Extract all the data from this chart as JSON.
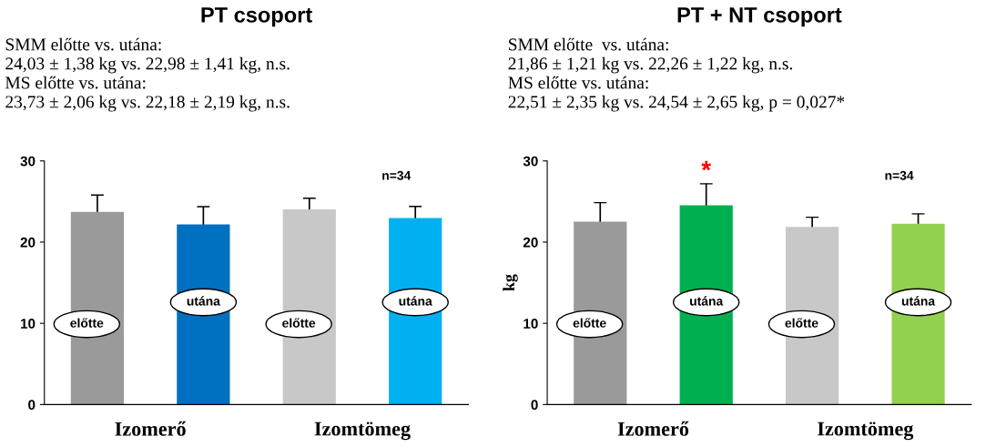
{
  "chart_data": [
    {
      "type": "bar",
      "title": "PT csoport",
      "subtitle": "SMM előtte vs. utána:\n24,03 ± 1,38 kg vs. 22,98 ± 1,41 kg, n.s.\nMS előtte vs. utána:\n23,73 ± 2,06 kg vs. 22,18 ± 2,19 kg, n.s.",
      "categories": [
        "előtte",
        "utána",
        "előtte",
        "utána"
      ],
      "values": [
        23.73,
        22.18,
        24.03,
        22.98
      ],
      "errors": [
        2.06,
        2.19,
        1.38,
        1.41
      ],
      "colors": [
        "#9a9a9a",
        "#0070c0",
        "#c8c8c8",
        "#00b0f0"
      ],
      "ylim": [
        0,
        30
      ],
      "yticks": [
        0,
        10,
        20,
        30
      ],
      "grid": false,
      "legend": false,
      "annotations": [
        "n=34",
        "Izomerő",
        "Izomtömeg"
      ]
    },
    {
      "type": "bar",
      "title": "PT + NT csoport",
      "subtitle": "SMM előtte  vs. utána:\n21,86 ± 1,21 kg vs. 22,26 ± 1,22 kg, n.s.\nMS előtte vs. utána:\n22,51 ± 2,35 kg vs. 24,54 ± 2,65 kg, p = 0,027*",
      "ylabel": "kg",
      "categories": [
        "előtte",
        "utána",
        "előtte",
        "utána"
      ],
      "values": [
        22.51,
        24.54,
        21.86,
        22.26
      ],
      "errors": [
        2.35,
        2.65,
        1.21,
        1.22
      ],
      "colors": [
        "#9a9a9a",
        "#00b050",
        "#c8c8c8",
        "#92d050"
      ],
      "ylim": [
        0,
        30
      ],
      "yticks": [
        0,
        10,
        20,
        30
      ],
      "grid": false,
      "legend": false,
      "annotations": [
        "n=34",
        "Izomerő",
        "Izomtömeg",
        "*"
      ]
    }
  ]
}
